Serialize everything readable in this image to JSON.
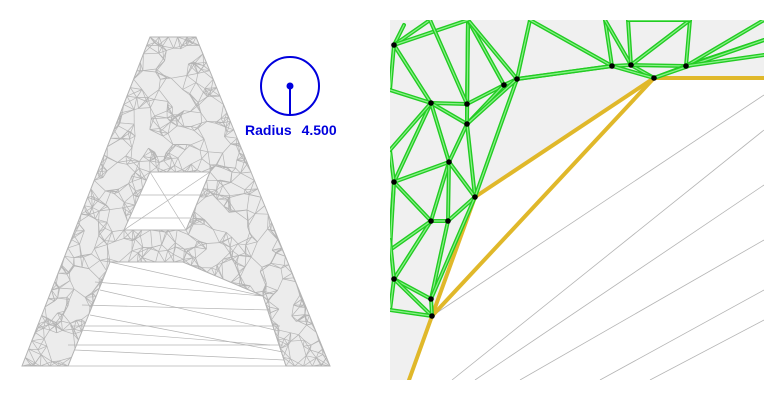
{
  "radius_widget": {
    "label": "Radius",
    "value": "4.500",
    "color": "#0000dd"
  },
  "colors": {
    "mesh_line": "#b4b4b4",
    "mesh_fill": "#ececec",
    "zoom_fill": "#f0f0f0",
    "edge_green": "#22cc22",
    "edge_green_light": "#8af08a",
    "boundary_gold": "#e0b82a",
    "vertex": "#000000"
  }
}
